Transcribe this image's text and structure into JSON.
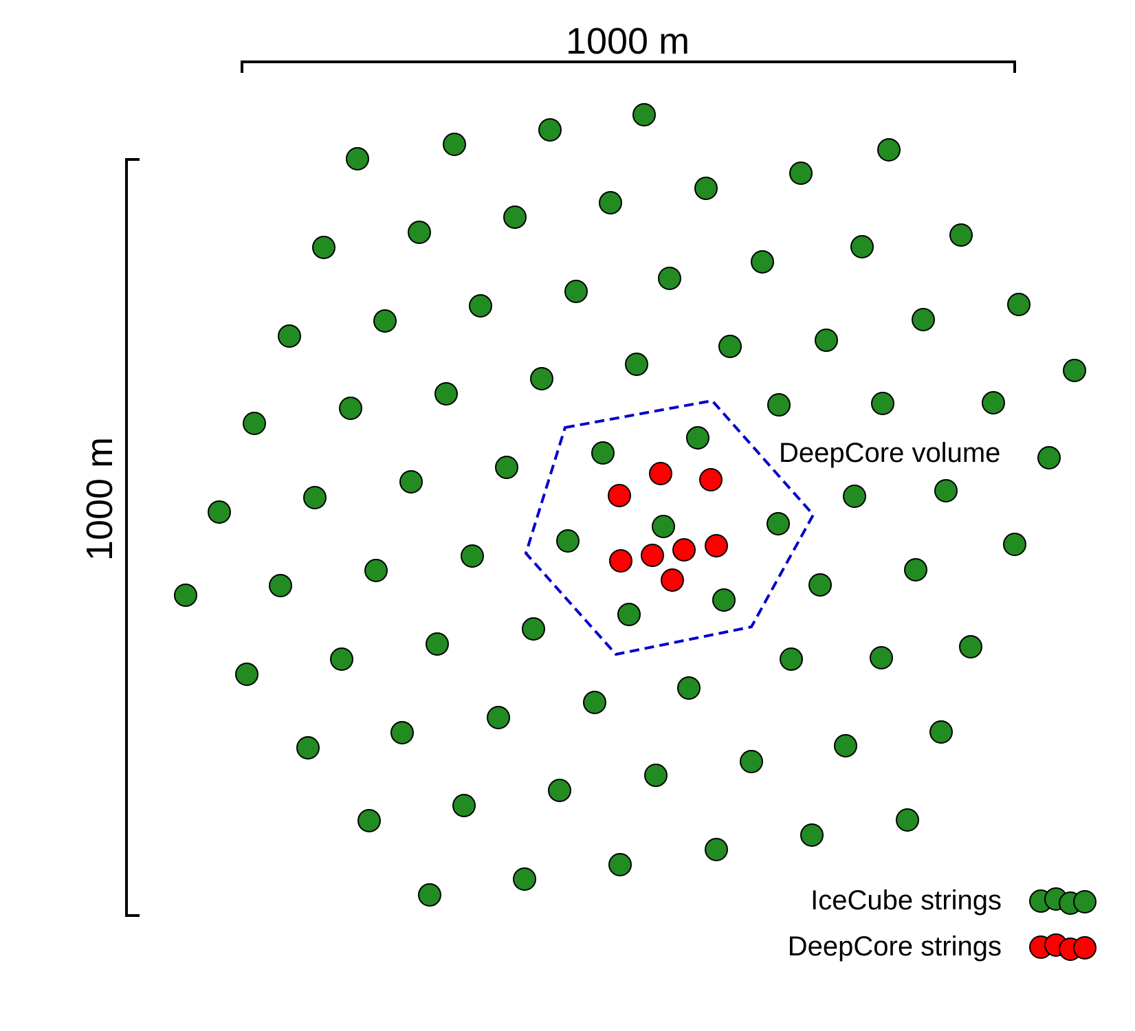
{
  "scale_bars": {
    "horizontal_label": "1000 m",
    "vertical_label": "1000 m"
  },
  "deepcore_volume_label": "DeepCore volume",
  "legend": {
    "icecube_label": "IceCube strings",
    "deepcore_label": "DeepCore strings"
  },
  "colors": {
    "icecube": "#228b22",
    "deepcore": "#ff0000",
    "hexagon": "#0000cc",
    "outline": "#000000"
  },
  "icon": "dashed-hexagon"
}
